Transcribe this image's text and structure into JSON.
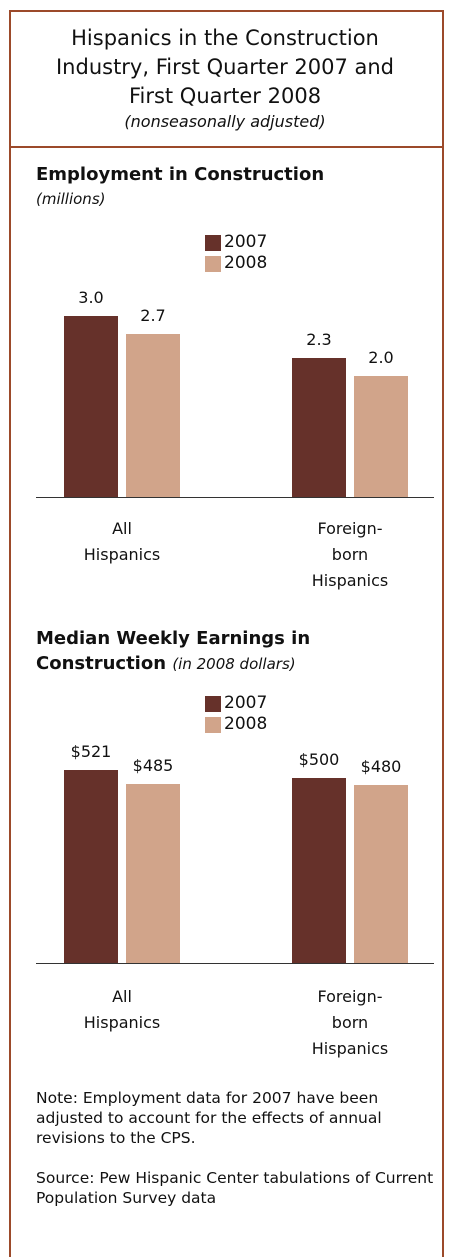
{
  "title": "Hispanics in the Construction Industry, First Quarter 2007 and First Quarter 2008",
  "subtitle": "(nonseasonally adjusted)",
  "chart_data": [
    {
      "type": "bar",
      "title": "Employment in Construction",
      "subtitle": "(millions)",
      "categories": [
        "All Hispanics",
        "Foreign-born Hispanics"
      ],
      "series": [
        {
          "name": "2007",
          "color": "#66312a",
          "values": [
            3.0,
            2.3
          ],
          "value_labels": [
            "3.0",
            "2.3"
          ]
        },
        {
          "name": "2008",
          "color": "#d1a48a",
          "values": [
            2.7,
            2.0
          ],
          "value_labels": [
            "2.7",
            "2.0"
          ]
        }
      ],
      "ylim": [
        0,
        3.5
      ]
    },
    {
      "type": "bar",
      "title": "Median Weekly Earnings in Construction",
      "subtitle": "(in 2008 dollars)",
      "categories": [
        "All Hispanics",
        "Foreign-born Hispanics"
      ],
      "series": [
        {
          "name": "2007",
          "color": "#66312a",
          "values": [
            521,
            500
          ],
          "value_labels": [
            "$521",
            "$500"
          ]
        },
        {
          "name": "2008",
          "color": "#d1a48a",
          "values": [
            485,
            480
          ],
          "value_labels": [
            "$485",
            "$480"
          ]
        }
      ],
      "ylim": [
        0,
        600
      ]
    }
  ],
  "note": "Note:  Employment data for 2007 have been adjusted to account for the effects of annual revisions to the CPS.",
  "source": "Source: Pew Hispanic Center tabulations of Current Population Survey data"
}
